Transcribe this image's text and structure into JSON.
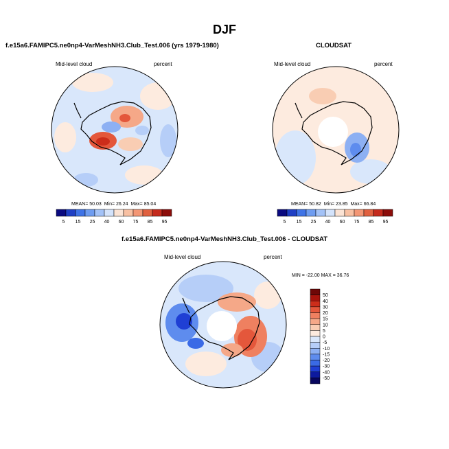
{
  "chart_data": [
    {
      "type": "heatmap",
      "projection": "south-polar-stereographic",
      "title": "f.e15a6.FAMIPC5.ne0np4-VarMeshNH3.Club_Test.006 (yrs 1979-1980)",
      "left_label": "Mid-level cloud",
      "right_label": "percent",
      "stats": {
        "mean_label": "MEAN=",
        "mean": "50.03",
        "min_label": "Min=",
        "min": "26.24",
        "max_label": "Max=",
        "max": "85.04"
      },
      "colorbar": {
        "orientation": "horizontal",
        "ticks": [
          "5",
          "15",
          "25",
          "40",
          "60",
          "75",
          "85",
          "95"
        ]
      }
    },
    {
      "type": "heatmap",
      "projection": "south-polar-stereographic",
      "title": "CLOUDSAT",
      "left_label": "Mid-level cloud",
      "right_label": "percent",
      "stats": {
        "mean_label": "MEAN=",
        "mean": "50.82",
        "min_label": "Min=",
        "min": "23.85",
        "max_label": "Max=",
        "max": "66.84"
      },
      "colorbar": {
        "orientation": "horizontal",
        "ticks": [
          "5",
          "15",
          "25",
          "40",
          "60",
          "75",
          "85",
          "95"
        ]
      }
    },
    {
      "type": "heatmap",
      "projection": "south-polar-stereographic",
      "title": "f.e15a6.FAMIPC5.ne0np4-VarMeshNH3.Club_Test.006 - CLOUDSAT",
      "left_label": "Mid-level cloud",
      "right_label": "percent",
      "stats_text": "MIN = -22.00  MAX =  36.76",
      "colorbar": {
        "orientation": "vertical",
        "ticks": [
          "50",
          "40",
          "30",
          "20",
          "15",
          "10",
          "5",
          "0",
          "-5",
          "-10",
          "-15",
          "-20",
          "-30",
          "-40",
          "-50"
        ]
      }
    }
  ],
  "figure_title": "DJF",
  "colors": {
    "abs_scale": [
      "#0a0a80",
      "#1f3fc4",
      "#3f73e6",
      "#6e9cf0",
      "#a3c2f7",
      "#d4e3fb",
      "#fbe3d4",
      "#f8c0a2",
      "#f39674",
      "#e0603f",
      "#c42a1c",
      "#8c0d0a"
    ],
    "diff_scale": [
      "#08065e",
      "#0d1a9e",
      "#1f3fd4",
      "#3a6ae6",
      "#5e8cee",
      "#8db0f3",
      "#b6cef8",
      "#d9e7fb",
      "#fdebdf",
      "#f9cdb3",
      "#f5a888",
      "#ef8060",
      "#e4573b",
      "#cc2d1a",
      "#a8130c",
      "#6e0707"
    ]
  }
}
